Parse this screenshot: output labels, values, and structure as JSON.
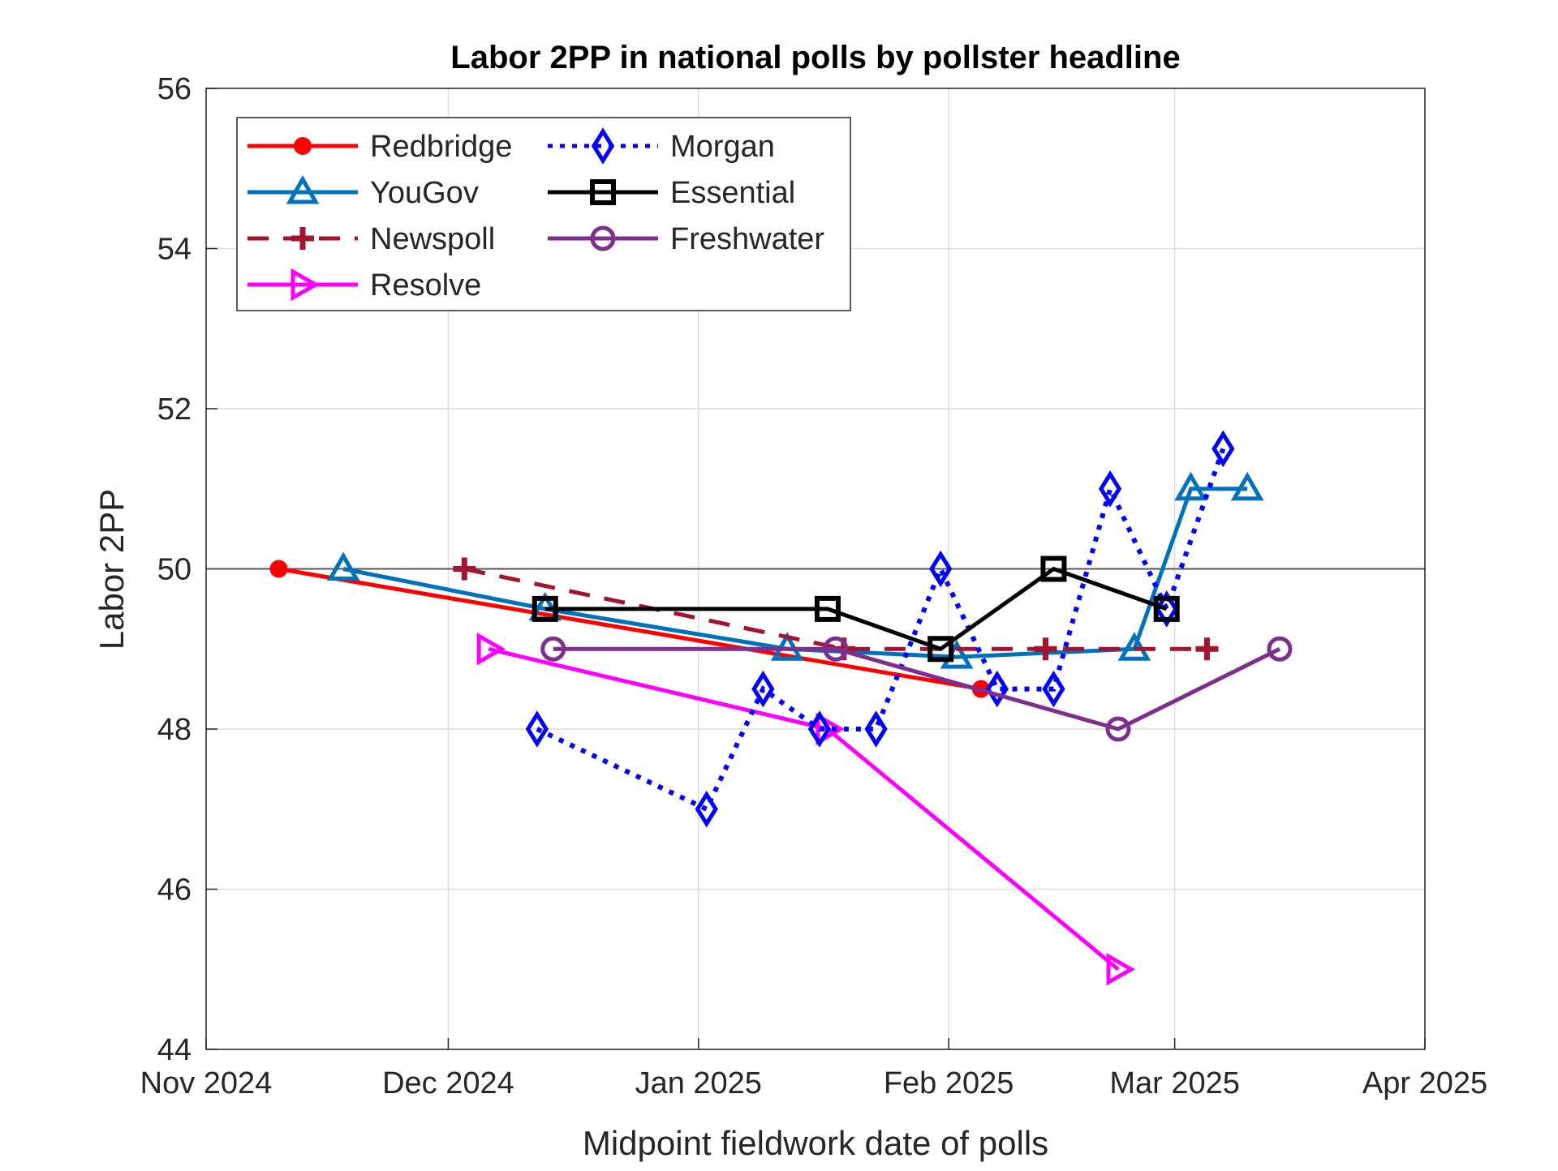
{
  "chart_data": {
    "type": "line",
    "title": "Labor 2PP in national polls by pollster headline",
    "xlabel": "Midpoint fieldwork date of polls",
    "ylabel": "Labor 2PP",
    "xlim": [
      "2024-11-01",
      "2025-04-01"
    ],
    "ylim": [
      44,
      56
    ],
    "xticks": [
      {
        "date": "2024-11-01",
        "label": "Nov 2024"
      },
      {
        "date": "2024-12-01",
        "label": "Dec 2024"
      },
      {
        "date": "2025-01-01",
        "label": "Jan 2025"
      },
      {
        "date": "2025-02-01",
        "label": "Feb 2025"
      },
      {
        "date": "2025-03-01",
        "label": "Mar 2025"
      },
      {
        "date": "2025-04-01",
        "label": "Apr 2025"
      }
    ],
    "yticks": [
      44,
      46,
      48,
      50,
      52,
      54,
      56
    ],
    "grid": true,
    "reference_line": 50,
    "legend_placement": "top-left",
    "series": [
      {
        "name": "Redbridge",
        "color": "#ff0000",
        "linestyle": "solid",
        "marker": "filled-circle",
        "points": [
          [
            "2024-11-10",
            50
          ],
          [
            "2025-02-05",
            48.5
          ]
        ]
      },
      {
        "name": "YouGov",
        "color": "#0072bd",
        "linestyle": "solid",
        "marker": "triangle-up",
        "points": [
          [
            "2024-11-18",
            50
          ],
          [
            "2024-12-13",
            49.5
          ],
          [
            "2025-01-12",
            49
          ],
          [
            "2025-02-02",
            48.9
          ],
          [
            "2025-02-24",
            49
          ],
          [
            "2025-03-03",
            51
          ],
          [
            "2025-03-10",
            51
          ]
        ]
      },
      {
        "name": "Newspoll",
        "color": "#a2142f",
        "linestyle": "dashed",
        "marker": "plus",
        "points": [
          [
            "2024-12-03",
            50
          ],
          [
            "2025-01-19",
            49
          ],
          [
            "2025-02-13",
            49
          ],
          [
            "2025-03-05",
            49
          ]
        ]
      },
      {
        "name": "Resolve",
        "color": "#ff00ff",
        "linestyle": "solid",
        "marker": "triangle-right",
        "points": [
          [
            "2024-12-06",
            49
          ],
          [
            "2025-01-17",
            48
          ],
          [
            "2025-02-22",
            45
          ]
        ]
      },
      {
        "name": "Morgan",
        "color": "#0000ff",
        "linestyle": "dotted",
        "marker": "diamond",
        "points": [
          [
            "2024-12-12",
            48
          ],
          [
            "2025-01-02",
            47
          ],
          [
            "2025-01-09",
            48.5
          ],
          [
            "2025-01-16",
            48
          ],
          [
            "2025-01-23",
            48
          ],
          [
            "2025-01-31",
            50
          ],
          [
            "2025-02-07",
            48.5
          ],
          [
            "2025-02-14",
            48.5
          ],
          [
            "2025-02-21",
            51
          ],
          [
            "2025-02-28",
            49.5
          ],
          [
            "2025-03-07",
            51.5
          ]
        ]
      },
      {
        "name": "Essential",
        "color": "#000000",
        "linestyle": "solid",
        "marker": "square",
        "points": [
          [
            "2024-12-13",
            49.5
          ],
          [
            "2025-01-17",
            49.5
          ],
          [
            "2025-01-31",
            49
          ],
          [
            "2025-02-14",
            50
          ],
          [
            "2025-02-28",
            49.5
          ]
        ]
      },
      {
        "name": "Freshwater",
        "color": "#7e2f8e",
        "linestyle": "solid",
        "marker": "open-circle",
        "points": [
          [
            "2024-12-14",
            49
          ],
          [
            "2025-01-18",
            49
          ],
          [
            "2025-02-22",
            48
          ],
          [
            "2025-03-14",
            49
          ]
        ]
      }
    ]
  }
}
